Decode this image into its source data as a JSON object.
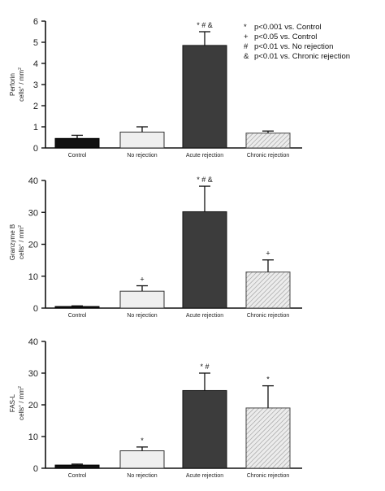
{
  "colors": {
    "control": "#111111",
    "no_rejection": "#efefef",
    "acute_rejection": "#3c3c3c",
    "chronic_rejection": "#e4e4e4",
    "axis": "#111111"
  },
  "legend": [
    {
      "symbol": "*",
      "text": "p<0.001 vs. Control"
    },
    {
      "symbol": "+",
      "text": "p<0.05 vs. Control"
    },
    {
      "symbol": "#",
      "text": "p<0.01 vs. No rejection"
    },
    {
      "symbol": "&",
      "text": "p<0.01 vs. Chronic rejection"
    }
  ],
  "chart_data": [
    {
      "type": "bar",
      "ylabel_line1": "Perforin",
      "ylabel_line2": "cells",
      "ylabel_unit": "/ mm",
      "ylim": [
        0,
        6
      ],
      "yticks": [
        "0",
        "1",
        "2",
        "3",
        "4",
        "5",
        "6"
      ],
      "categories": [
        "Control",
        "No rejection",
        "Acute rejection",
        "Chronic rejection"
      ],
      "values": [
        0.45,
        0.75,
        4.85,
        0.7
      ],
      "errors": [
        0.15,
        0.25,
        0.65,
        0.1
      ],
      "significance": [
        "",
        "",
        "* # &",
        ""
      ],
      "grid": false
    },
    {
      "type": "bar",
      "ylabel_line1": "Granzyme B",
      "ylabel_line2": "cells",
      "ylabel_unit": "/ mm",
      "ylim": [
        0,
        40
      ],
      "yticks": [
        "0",
        "10",
        "20",
        "30",
        "40"
      ],
      "categories": [
        "Control",
        "No rejection",
        "Acute rejection",
        "Chronic rejection"
      ],
      "values": [
        0.5,
        5.3,
        30.2,
        11.3
      ],
      "errors": [
        0.2,
        1.7,
        8.0,
        3.8
      ],
      "significance": [
        "",
        "+",
        "* # &",
        "+"
      ],
      "grid": false
    },
    {
      "type": "bar",
      "ylabel_line1": "FAS-L",
      "ylabel_line2": "cells",
      "ylabel_unit": "/ mm",
      "ylim": [
        0,
        40
      ],
      "yticks": [
        "0",
        "10",
        "20",
        "30",
        "40"
      ],
      "categories": [
        "Control",
        "No rejection",
        "Acute rejection",
        "Chronic rejection"
      ],
      "values": [
        1.0,
        5.5,
        24.5,
        19.0
      ],
      "errors": [
        0.3,
        1.2,
        5.5,
        7.0
      ],
      "significance": [
        "",
        "*",
        "* #",
        "*"
      ],
      "grid": false
    }
  ]
}
